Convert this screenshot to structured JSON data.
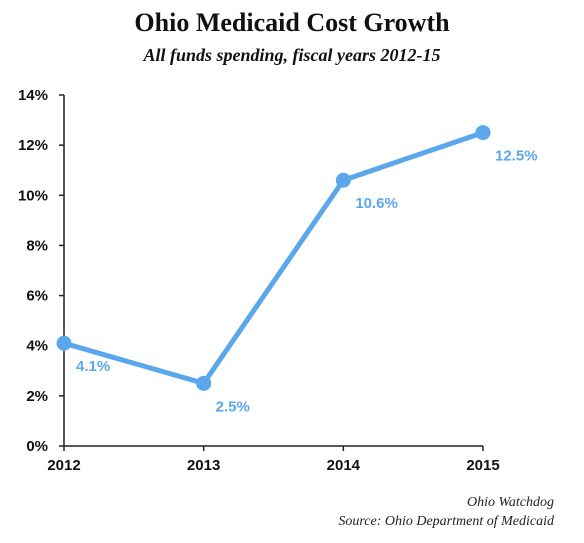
{
  "chart_data": {
    "type": "line",
    "title": "Ohio Medicaid Cost Growth",
    "subtitle": "All funds spending, fiscal years 2012-15",
    "categories": [
      "2012",
      "2013",
      "2014",
      "2015"
    ],
    "series": [
      {
        "values": [
          4.1,
          2.5,
          10.6,
          12.5
        ],
        "labels": [
          "4.1%",
          "2.5%",
          "10.6%",
          "12.5%"
        ]
      }
    ],
    "ylim": [
      0,
      14
    ],
    "yticks": [
      "0%",
      "2%",
      "4%",
      "6%",
      "8%",
      "10%",
      "12%",
      "14%"
    ],
    "grid": false,
    "xlabel": "",
    "ylabel": ""
  },
  "colors": {
    "series": "#5aa7ec",
    "label": "#5aa7ec",
    "axis": "#222222"
  },
  "credits": {
    "publisher": "Ohio Watchdog",
    "source": "Source: Ohio Department of Medicaid"
  }
}
